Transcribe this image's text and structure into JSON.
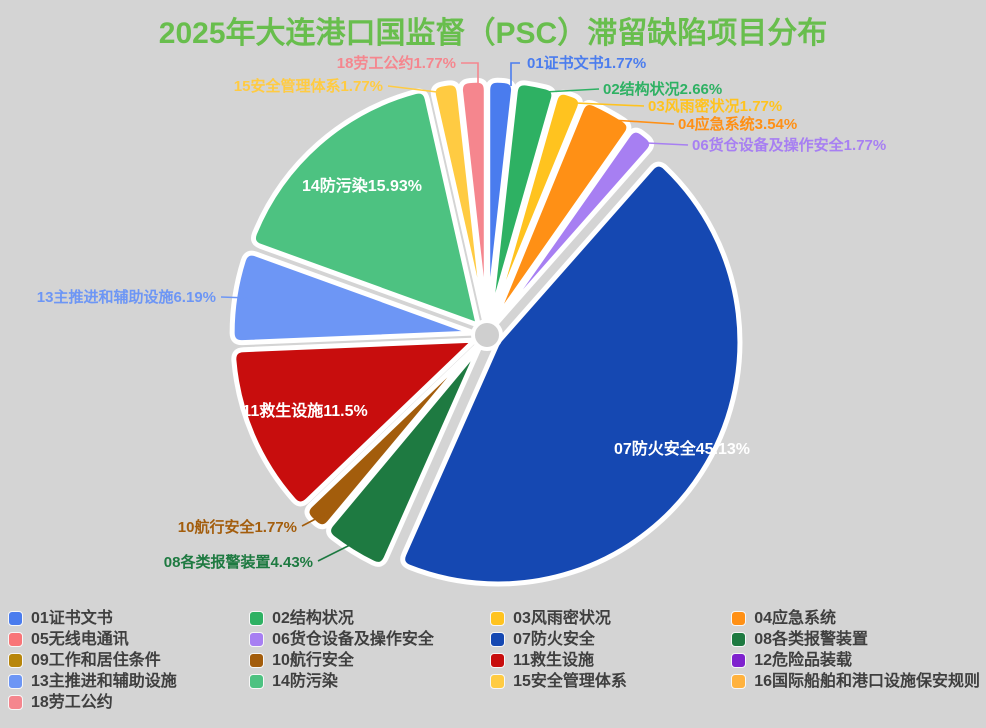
{
  "chart_data": {
    "type": "pie",
    "title": "2025年大连港口国监督（PSC）滞留缺陷项目分布",
    "title_color": "#68BE4D",
    "background_color": "#D4D4D4",
    "direction": "clockwise",
    "start_angle": "12-oclock",
    "legend_position": "bottom",
    "unit": "%",
    "slices": [
      {
        "id": "01",
        "name": "01证书文书",
        "value": 1.77,
        "pct_label": "1.77%",
        "color": "#4A7CEE",
        "label_placement": "outside"
      },
      {
        "id": "02",
        "name": "02结构状况",
        "value": 2.66,
        "pct_label": "2.66%",
        "color": "#2EB163",
        "label_placement": "outside"
      },
      {
        "id": "03",
        "name": "03风雨密状况",
        "value": 1.77,
        "pct_label": "1.77%",
        "color": "#FFC31F",
        "label_placement": "outside"
      },
      {
        "id": "04",
        "name": "04应急系统",
        "value": 3.54,
        "pct_label": "3.54%",
        "color": "#FF9015",
        "label_placement": "outside"
      },
      {
        "id": "06",
        "name": "06货仓设备及操作安全",
        "value": 1.77,
        "pct_label": "1.77%",
        "color": "#A77FF2",
        "label_placement": "outside"
      },
      {
        "id": "07",
        "name": "07防火安全",
        "value": 45.13,
        "pct_label": "45.13%",
        "color": "#1548B2",
        "label_placement": "inside"
      },
      {
        "id": "08",
        "name": "08各类报警装置",
        "value": 4.43,
        "pct_label": "4.43%",
        "color": "#1E7A41",
        "label_placement": "outside"
      },
      {
        "id": "10",
        "name": "10航行安全",
        "value": 1.77,
        "pct_label": "1.77%",
        "color": "#A35D0C",
        "label_placement": "outside"
      },
      {
        "id": "11",
        "name": "11救生设施",
        "value": 11.5,
        "pct_label": "11.5%",
        "color": "#C80D0D",
        "label_placement": "inside"
      },
      {
        "id": "13",
        "name": "13主推进和辅助设施",
        "value": 6.19,
        "pct_label": "6.19%",
        "color": "#6D96F5",
        "label_placement": "outside"
      },
      {
        "id": "14",
        "name": "14防污染",
        "value": 15.93,
        "pct_label": "15.93%",
        "color": "#4DC281",
        "label_placement": "inside"
      },
      {
        "id": "15",
        "name": "15安全管理体系",
        "value": 1.77,
        "pct_label": "1.77%",
        "color": "#FFCB42",
        "label_placement": "outside"
      },
      {
        "id": "18",
        "name": "18劳工公约",
        "value": 1.77,
        "pct_label": "1.77%",
        "color": "#F5868E",
        "label_placement": "outside"
      }
    ],
    "legend": [
      {
        "name": "01证书文书",
        "color": "#4A7CEE"
      },
      {
        "name": "02结构状况",
        "color": "#2EB163"
      },
      {
        "name": "03风雨密状况",
        "color": "#FFC31F"
      },
      {
        "name": "04应急系统",
        "color": "#FF9015"
      },
      {
        "name": "05无线电通讯",
        "color": "#F87578"
      },
      {
        "name": "06货仓设备及操作安全",
        "color": "#A77FF2"
      },
      {
        "name": "07防火安全",
        "color": "#1548B2"
      },
      {
        "name": "08各类报警装置",
        "color": "#1E7A41"
      },
      {
        "name": "09工作和居住条件",
        "color": "#B8860B"
      },
      {
        "name": "10航行安全",
        "color": "#A35D0C"
      },
      {
        "name": "11救生设施",
        "color": "#C80D0D"
      },
      {
        "name": "12危险品装载",
        "color": "#7F22CE"
      },
      {
        "name": "13主推进和辅助设施",
        "color": "#6D96F5"
      },
      {
        "name": "14防污染",
        "color": "#4DC281"
      },
      {
        "name": "15安全管理体系",
        "color": "#FFCB42"
      },
      {
        "name": "16国际船舶和港口设施保安规则",
        "color": "#FFB23E"
      },
      {
        "name": "18劳工公约",
        "color": "#F5868E"
      }
    ]
  }
}
